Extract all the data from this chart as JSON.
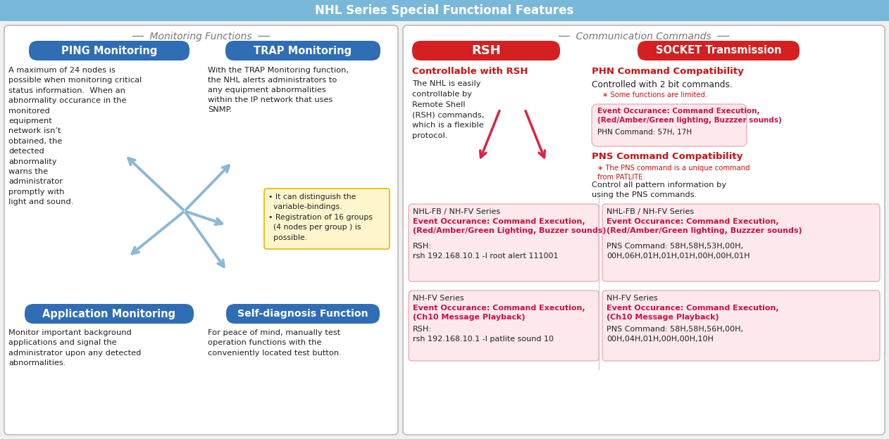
{
  "title": "NHL Series Special Functional Features",
  "title_bg": "#7ab8d9",
  "title_color": "white",
  "left_section_title": "Monitoring Functions",
  "right_section_title": "Communication Commands",
  "section_title_color": "#777777",
  "bg_color": "#f0f0f0",
  "ping_title": "PING Monitoring",
  "ping_text": "A maximum of 24 nodes is\npossible when monitoring critical\nstatus information.  When an\nabnormality occurance in the\nmonitored\nequipment\nnetwork isn’t\nobtained, the\ndetected\nabnormality\nwarns the\nadministrator\npromptly with\nlight and sound.",
  "trap_title": "TRAP Monitoring",
  "trap_text": "With the TRAP Monitoring function,\nthe NHL alerts administrators to\nany equipment abnormalities\nwithin the IP network that uses\nSNMP.",
  "trap_bullet": "• It can distinguish the\n  variable-bindings.\n• Registration of 16 groups\n  (4 nodes per group ) is\n  possible.",
  "app_title": "Application Monitoring",
  "app_text": "Monitor important background\napplications and signal the\nadministrator upon any detected\nabnormalities.",
  "self_title": "Self-diagnosis Function",
  "self_text": "For peace of mind, manually test\noperation functions with the\nconveniently located test button.",
  "rsh_title": "RSH",
  "socket_title": "SOCKET Transmission",
  "red_btn_color": "#d42020",
  "rsh_subtitle": "Controllable with RSH",
  "rsh_body": "The NHL is easily\ncontrollable by\nRemote Shell\n(RSH) commands,\nwhich is a flexible\nprotocol.",
  "phn_subtitle": "PHN Command Compatibility",
  "phn_body": "Controlled with 2 bit commands.",
  "phn_note": "∗ Some functions are limited.",
  "phn_box_event": "Event Occurance: Command Execution,\n(Red/Amber/Green lighting, Buzzzer sounds)",
  "phn_box_cmd": "PHN Command: 57H, 17H",
  "pns_subtitle": "PNS Command Compatibility",
  "pns_note": "∗ The PNS command is a unique command\nfrom PATLITE.",
  "pns_body": "Control all pattern information by\nusing the PNS commands.",
  "rsh_box1_title": "NHL-FB / NH-FV Series",
  "rsh_box1_event": "Event Occurance: Command Execution,\n(Red/Amber/Green Lighting, Buzzer sounds)",
  "rsh_box1_cmd": "RSH:\nrsh 192.168.10.1 -l root alert 111001",
  "rsh_box2_title": "NH-FV Series",
  "rsh_box2_event": "Event Occurance: Command Execution,\n(Ch10 Message Playback)",
  "rsh_box2_cmd": "RSH:\nrsh 192.168.10.1 -l patlite sound 10",
  "pns_box1_title": "NHL-FB / NH-FV Series",
  "pns_box1_event": "Event Occurance: Command Execution,\n(Red/Amber/Green lighting, Buzzzer sounds)",
  "pns_box1_cmd": "PNS Command: 58H,58H,53H,00H,\n00H,06H,01H,01H,01H,00H,00H,01H",
  "pns_box2_title": "NH-FV Series",
  "pns_box2_event": "Event Occurance: Command Execution,\n(Ch10 Message Playback)",
  "pns_box2_cmd": "PNS Command: 58H,58H,56H,00H,\n00H,04H,01H,00H,00H,10H",
  "blue_btn_color": "#2f6db5",
  "pink_box_color": "#fde8ec",
  "orange_box_color": "#fef5cc",
  "red_text_color": "#cc1111",
  "pink_text_color": "#cc1144",
  "dark_text": "#222222",
  "gray_text": "#555555",
  "panel_border": "#bbbbbb",
  "panel_bg": "#ffffff",
  "orange_border": "#e8b800"
}
